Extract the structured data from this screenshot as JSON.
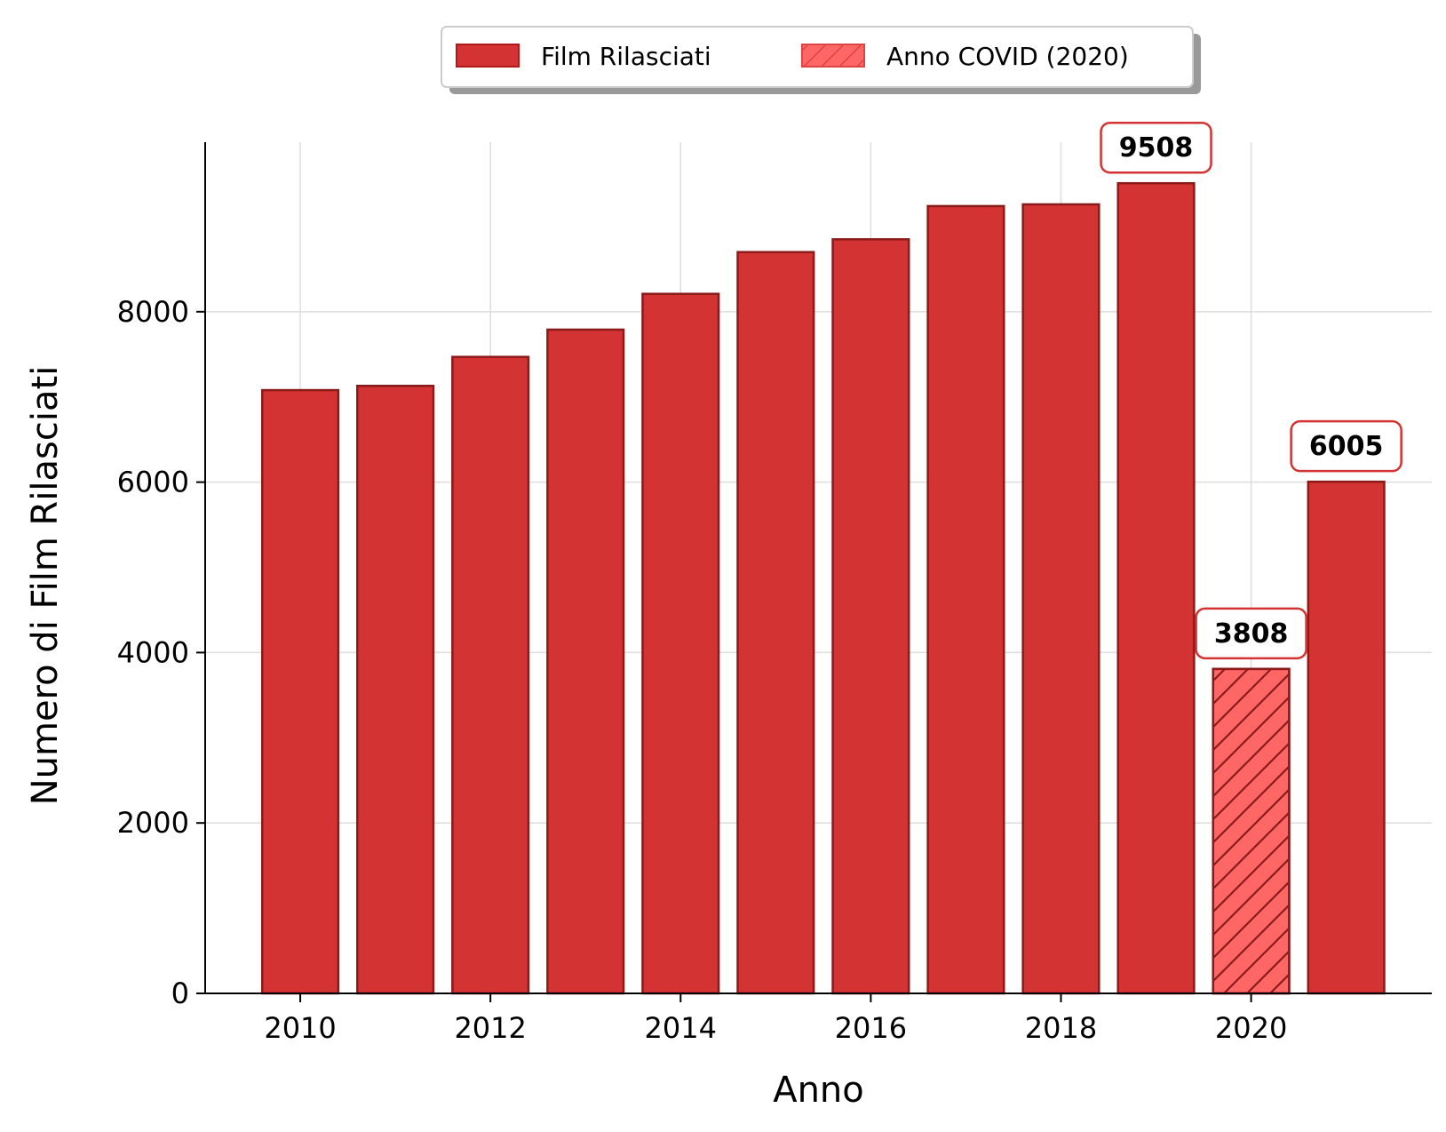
{
  "chart_data": {
    "type": "bar",
    "xlabel": "Anno",
    "ylabel": "Numero di Film Rilasciati",
    "x": [
      2010,
      2011,
      2012,
      2013,
      2014,
      2015,
      2016,
      2017,
      2018,
      2019,
      2020,
      2021
    ],
    "values": [
      7080,
      7130,
      7470,
      7790,
      8210,
      8700,
      8850,
      9240,
      9260,
      9508,
      3808,
      6005
    ],
    "highlight_year": 2020,
    "annotated_years": [
      2019,
      2020,
      2021
    ],
    "xlim": [
      2009,
      2021.9
    ],
    "ylim": [
      0,
      9990
    ],
    "xticks": [
      2010,
      2012,
      2014,
      2016,
      2018,
      2020
    ],
    "yticks": [
      0,
      2000,
      4000,
      6000,
      8000
    ],
    "grid": true,
    "legend_position": "top-center",
    "legend": [
      {
        "label": "Film Rilasciati",
        "style": "solid"
      },
      {
        "label": "Anno COVID (2020)",
        "style": "hatched"
      }
    ],
    "colors": {
      "bar": "#d43333",
      "bar_edge": "#8b1a1a",
      "covid_bar": "#ff6666",
      "label_box_edge": "#d43333"
    }
  }
}
